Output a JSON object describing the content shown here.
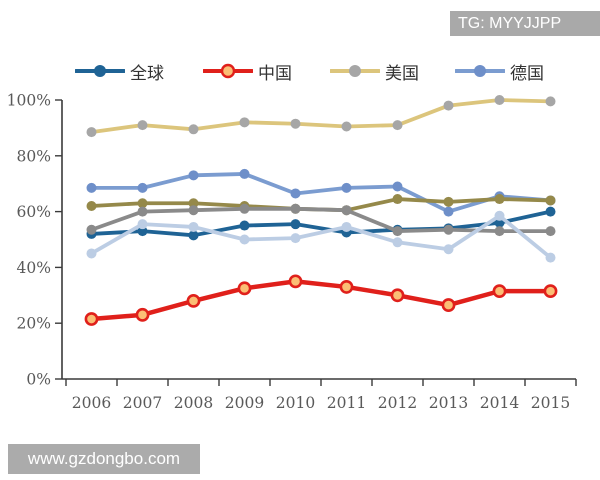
{
  "badge": {
    "text": "TG: MYYJJPP"
  },
  "watermark": {
    "text": "www.gzdongbo.com"
  },
  "colors": {
    "badge_bg": "#A9A9A9",
    "watermark_bg": "#ABABAB",
    "axis": "#3A3A3A",
    "tick_label": "#595959"
  },
  "chart_data": {
    "type": "line",
    "title": "",
    "xlabel": "",
    "ylabel": "",
    "x": [
      "2006",
      "2007",
      "2008",
      "2009",
      "2010",
      "2011",
      "2012",
      "2013",
      "2014",
      "2015"
    ],
    "y_ticks": [
      "0%",
      "20%",
      "40%",
      "60%",
      "80%",
      "100%"
    ],
    "ylim": [
      0,
      100
    ],
    "grid": false,
    "legend_position": "top",
    "series": [
      {
        "id": "global",
        "label": "全球",
        "color": "#1F6395",
        "marker_fill": "#1F6395",
        "values": [
          52,
          53,
          51.5,
          55,
          55.5,
          52.5,
          53.5,
          54,
          56,
          60
        ],
        "in_legend": true
      },
      {
        "id": "china",
        "label": "中国",
        "color": "#E0201B",
        "marker_fill": "#FBBE75",
        "marker_stroke": "#E0201B",
        "values": [
          21.5,
          23,
          28,
          32.5,
          35,
          33,
          30,
          26.5,
          31.5,
          31.5
        ],
        "in_legend": true
      },
      {
        "id": "us",
        "label": "美国",
        "color": "#DCC57C",
        "marker_fill": "#A6A6A6",
        "values": [
          88.5,
          91,
          89.5,
          92,
          91.5,
          90.5,
          91,
          98,
          100,
          99.5
        ],
        "in_legend": true
      },
      {
        "id": "germany",
        "label": "德国",
        "color": "#7B9CD0",
        "marker_fill": "#6E8FC9",
        "values": [
          68.5,
          68.5,
          73,
          73.5,
          66.5,
          68.5,
          69,
          60,
          65.5,
          64
        ],
        "in_legend": true
      },
      {
        "id": "series5",
        "label": "",
        "color": "#95894A",
        "marker_fill": "#95894A",
        "values": [
          62,
          63,
          63,
          62,
          61,
          60.5,
          64.5,
          63.5,
          64.5,
          64
        ],
        "in_legend": false
      },
      {
        "id": "series6",
        "label": "",
        "color": "#8A8A8A",
        "marker_fill": "#8A8A8A",
        "values": [
          53.5,
          60,
          60.5,
          61,
          61,
          60.5,
          53,
          53.5,
          53,
          53
        ],
        "in_legend": false
      },
      {
        "id": "series7",
        "label": "",
        "color": "#BCCDE4",
        "marker_fill": "#BCCDE4",
        "values": [
          45,
          55.5,
          54.5,
          50,
          50.5,
          54.5,
          49,
          46.5,
          58.5,
          43.5
        ],
        "in_legend": false
      }
    ]
  }
}
